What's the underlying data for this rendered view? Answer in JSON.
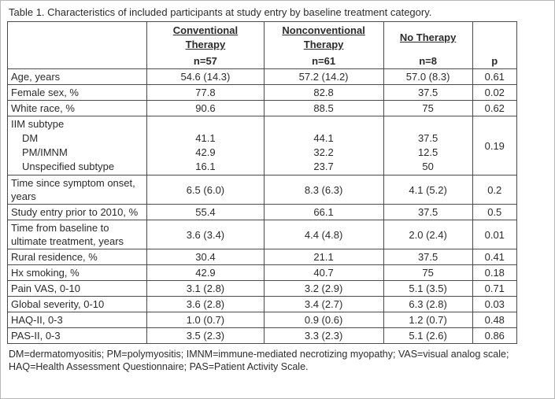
{
  "title": "Table 1. Characteristics of included participants at study entry by baseline treatment category.",
  "header": {
    "cols": [
      {
        "lines": [
          "Conventional",
          "Therapy"
        ],
        "n": "n=57"
      },
      {
        "lines": [
          "Nonconventional",
          "Therapy"
        ],
        "n": "n=61"
      },
      {
        "lines": [
          "No Therapy"
        ],
        "n": "n=8"
      }
    ],
    "p_label": "p"
  },
  "table": {
    "rows": [
      {
        "type": "simple",
        "label": "Age, years",
        "values": [
          "54.6 (14.3)",
          "57.2 (14.2)",
          "57.0 (8.3)"
        ],
        "p": "0.61"
      },
      {
        "type": "simple",
        "label": "Female sex, %",
        "values": [
          "77.8",
          "82.8",
          "37.5"
        ],
        "p": "0.02"
      },
      {
        "type": "simple",
        "label": "White race, %",
        "values": [
          "90.6",
          "88.5",
          "75"
        ],
        "p": "0.62"
      },
      {
        "type": "group",
        "label": "IIM subtype",
        "p": "0.19",
        "subrows": [
          {
            "label": "DM",
            "values": [
              "41.1",
              "44.1",
              "37.5"
            ]
          },
          {
            "label": "PM/IMNM",
            "values": [
              "42.9",
              "32.2",
              "12.5"
            ]
          },
          {
            "label": "Unspecified subtype",
            "values": [
              "16.1",
              "23.7",
              "50"
            ]
          }
        ]
      },
      {
        "type": "simple",
        "label": "Time since symptom onset, years",
        "values": [
          "6.5 (6.0)",
          "8.3 (6.3)",
          "4.1 (5.2)"
        ],
        "p": "0.2"
      },
      {
        "type": "simple",
        "label": "Study entry prior to 2010, %",
        "values": [
          "55.4",
          "66.1",
          "37.5"
        ],
        "p": "0.5"
      },
      {
        "type": "simple",
        "label": "Time from baseline to ultimate treatment, years",
        "values": [
          "3.6 (3.4)",
          "4.4 (4.8)",
          "2.0 (2.4)"
        ],
        "p": "0.01"
      },
      {
        "type": "simple",
        "label": "Rural residence, %",
        "values": [
          "30.4",
          "21.1",
          "37.5"
        ],
        "p": "0.41"
      },
      {
        "type": "simple",
        "label": "Hx smoking, %",
        "values": [
          "42.9",
          "40.7",
          "75"
        ],
        "p": "0.18"
      },
      {
        "type": "simple",
        "label": "Pain VAS, 0-10",
        "values": [
          "3.1 (2.8)",
          "3.2 (2.9)",
          "5.1 (3.5)"
        ],
        "p": "0.71"
      },
      {
        "type": "simple",
        "label": "Global severity, 0-10",
        "values": [
          "3.6 (2.8)",
          "3.4 (2.7)",
          "6.3 (2.8)"
        ],
        "p": "0.03"
      },
      {
        "type": "simple",
        "label": "HAQ-II, 0-3",
        "values": [
          "1.0 (0.7)",
          "0.9 (0.6)",
          "1.2 (0.7)"
        ],
        "p": "0.48"
      },
      {
        "type": "simple",
        "label": "PAS-II, 0-3",
        "values": [
          "3.5 (2.3)",
          "3.3 (2.3)",
          "5.1 (2.6)"
        ],
        "p": "0.86"
      }
    ]
  },
  "footnote": "DM=dermatomyositis; PM=polymyositis; IMNM=immune-mediated necrotizing myopathy; VAS=visual analog scale; HAQ=Health Assessment Questionnaire; PAS=Patient Activity Scale."
}
